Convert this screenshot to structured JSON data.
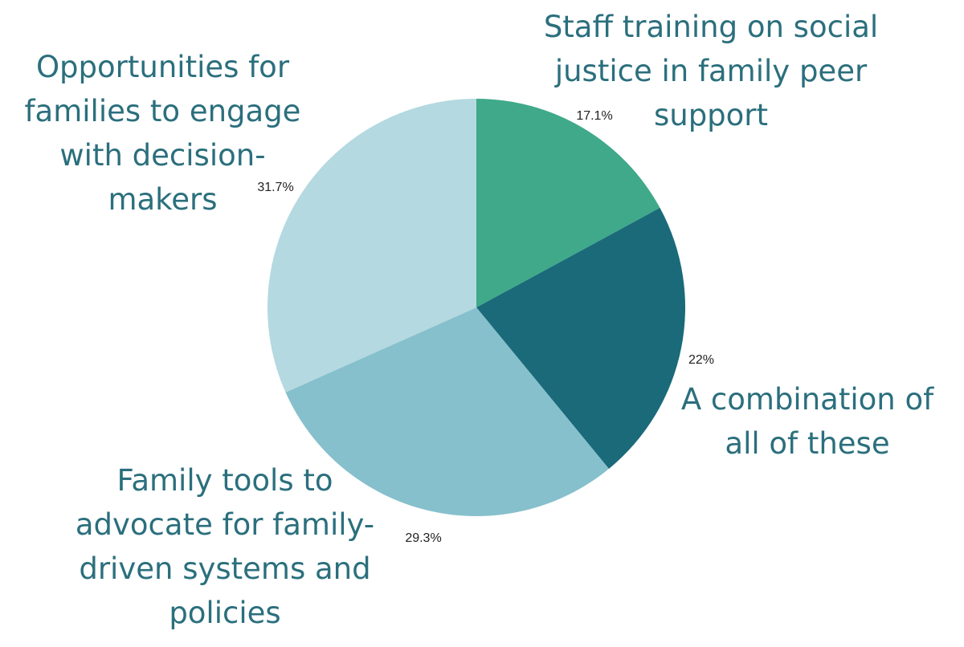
{
  "chart_data": {
    "type": "pie",
    "categories": [
      "Staff training on social justice in family peer support",
      "A combination of all of these",
      "Family tools to advocate for family-driven systems and policies",
      "Opportunities for families to engage with decision-makers"
    ],
    "values": [
      17.1,
      22,
      29.3,
      31.7
    ],
    "value_labels": [
      "17.1%",
      "22%",
      "29.3%",
      "31.7%"
    ],
    "colors": [
      "#3fa98a",
      "#1a6a7a",
      "#86c0cc",
      "#b4d9e0"
    ]
  }
}
